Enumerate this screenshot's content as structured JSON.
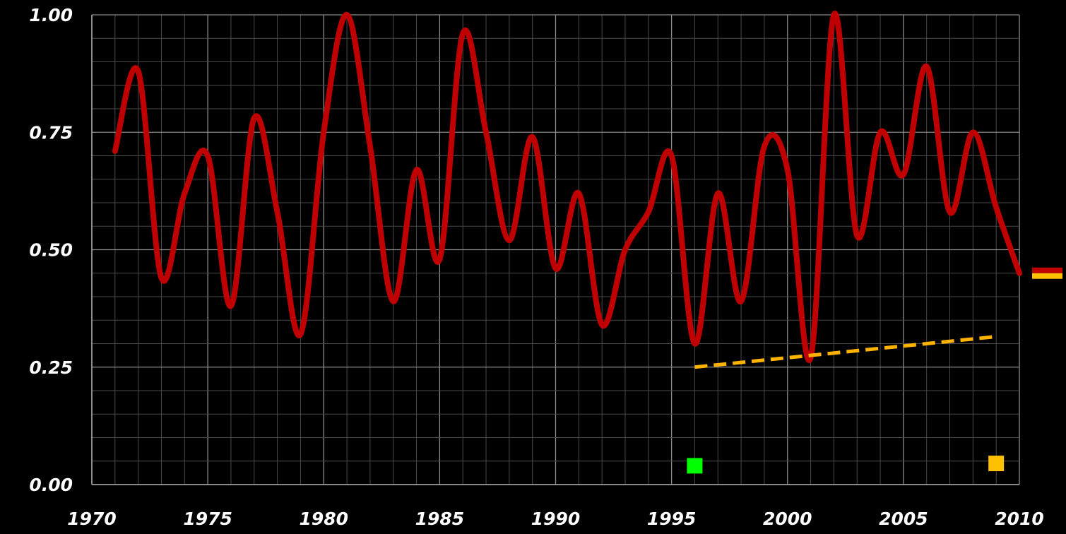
{
  "chart_data": {
    "type": "line",
    "title": "",
    "xlabel": "",
    "ylabel": "",
    "xlim": [
      1970,
      2010
    ],
    "ylim": [
      0,
      1
    ],
    "grid": true,
    "x_ticks": [
      "1970",
      "1975",
      "1980",
      "1985",
      "1990",
      "1995",
      "2000",
      "2005",
      "2010"
    ],
    "y_ticks": [
      "0.00",
      "0.25",
      "0.50",
      "0.75",
      "1.00"
    ],
    "series": [
      {
        "color": "#c00000",
        "style": "smooth-solid",
        "x": [
          1971,
          1972,
          1973,
          1974,
          1975,
          1976,
          1977,
          1978,
          1979,
          1980,
          1981,
          1982,
          1983,
          1984,
          1985,
          1986,
          1987,
          1988,
          1989,
          1990,
          1991,
          1992,
          1993,
          1994,
          1995,
          1996,
          1997,
          1998,
          1999,
          2000,
          2001,
          2002,
          2003,
          2004,
          2005,
          2006,
          2007,
          2008,
          2009,
          2010
        ],
        "y": [
          0.71,
          0.88,
          0.44,
          0.62,
          0.7,
          0.38,
          0.78,
          0.58,
          0.32,
          0.75,
          1.0,
          0.72,
          0.39,
          0.67,
          0.48,
          0.96,
          0.75,
          0.52,
          0.74,
          0.46,
          0.62,
          0.34,
          0.5,
          0.58,
          0.7,
          0.3,
          0.62,
          0.39,
          0.72,
          0.67,
          0.27,
          1.0,
          0.53,
          0.75,
          0.66,
          0.89,
          0.58,
          0.75,
          0.59,
          0.45
        ]
      },
      {
        "color": "#ffb300",
        "style": "dashed",
        "x": [
          1996,
          2009
        ],
        "y": [
          0.25,
          0.315
        ]
      }
    ],
    "points": [
      {
        "color": "#00ff00",
        "x": 1996,
        "y": 0.04
      },
      {
        "color": "#ffc000",
        "x": 2009,
        "y": 0.045
      }
    ],
    "end_marker": {
      "colors": [
        "#c00000",
        "#ffc000"
      ],
      "y": 0.45
    }
  }
}
